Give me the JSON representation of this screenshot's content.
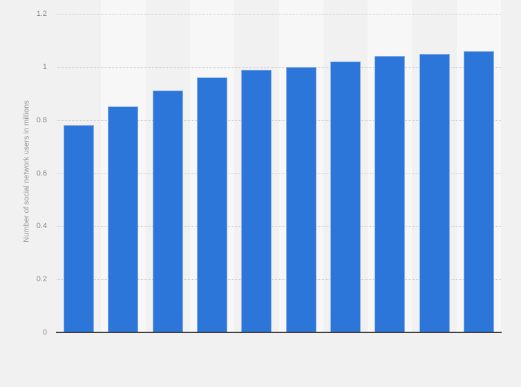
{
  "chart_data": {
    "type": "bar",
    "title": "",
    "xlabel": "",
    "ylabel": "Number of social network users in millions",
    "categories": [
      "",
      "",
      "",
      "",
      "",
      "",
      "",
      "",
      "",
      ""
    ],
    "values": [
      0.78,
      0.85,
      0.91,
      0.96,
      0.99,
      1.0,
      1.02,
      1.04,
      1.05,
      1.06
    ],
    "ylim": [
      0,
      1.2
    ],
    "yticks": [
      0,
      0.2,
      0.4,
      0.6,
      0.8,
      1,
      1.2
    ],
    "ytick_labels": [
      "0",
      "0.2",
      "0.4",
      "0.6",
      "0.8",
      "1",
      "1.2"
    ],
    "grid": "horizontal dotted lines every 0.2",
    "legend_position": "none",
    "colors": {
      "bar_fill": "#2b76d8",
      "bar_border": "#8fb0e5",
      "page_background": "#f1f1f2",
      "alt_plot_band": "#f7f7f8",
      "gridline": "#c9c9c9",
      "axis_line": "#3f3f3f",
      "tick_label": "#878787",
      "axis_title": "#9b9b9b"
    }
  }
}
